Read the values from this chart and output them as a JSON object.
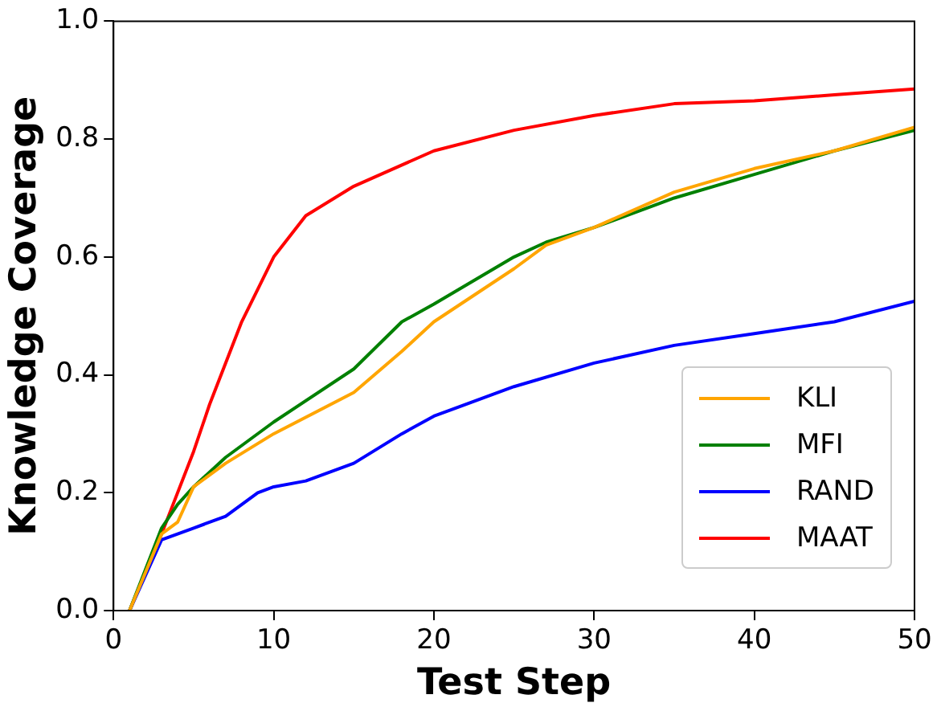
{
  "chart_data": {
    "type": "line",
    "xlabel": "Test Step",
    "ylabel": "Knowledge Coverage",
    "xlim": [
      0,
      50
    ],
    "xticks": [
      0,
      10,
      20,
      30,
      40,
      50
    ],
    "ylim": [
      0,
      1
    ],
    "yticks": [
      {
        "value": 0,
        "label": "0.0"
      },
      {
        "value": 0.2,
        "label": "0.2"
      },
      {
        "value": 0.4,
        "label": "0.4"
      },
      {
        "value": 0.6,
        "label": "0.6"
      },
      {
        "value": 0.8,
        "label": "0.8"
      },
      {
        "value": 1,
        "label": "1.0"
      }
    ],
    "grid": false,
    "legend": "bottom right",
    "marker": "none",
    "line_style": "solid",
    "series": [
      {
        "name": "KLI",
        "color": "#ffa500",
        "x": [
          1,
          3,
          4,
          5,
          7,
          10,
          15,
          18,
          20,
          25,
          27,
          30,
          35,
          40,
          45,
          50
        ],
        "values": [
          0,
          0.13,
          0.15,
          0.21,
          0.25,
          0.3,
          0.37,
          0.44,
          0.49,
          0.58,
          0.62,
          0.65,
          0.71,
          0.75,
          0.78,
          0.82
        ]
      },
      {
        "name": "MFI",
        "color": "#008000",
        "x": [
          1,
          3,
          4,
          5,
          7,
          10,
          15,
          18,
          20,
          25,
          27,
          30,
          35,
          40,
          45,
          50
        ],
        "values": [
          0,
          0.14,
          0.18,
          0.21,
          0.26,
          0.32,
          0.41,
          0.49,
          0.52,
          0.6,
          0.625,
          0.65,
          0.7,
          0.74,
          0.78,
          0.815
        ]
      },
      {
        "name": "RAND",
        "color": "#0000ff",
        "x": [
          1,
          3,
          5,
          7,
          9,
          10,
          12,
          15,
          18,
          20,
          25,
          30,
          35,
          40,
          45,
          50
        ],
        "values": [
          0,
          0.12,
          0.14,
          0.16,
          0.2,
          0.21,
          0.22,
          0.25,
          0.3,
          0.33,
          0.38,
          0.42,
          0.45,
          0.47,
          0.49,
          0.525
        ]
      },
      {
        "name": "MAAT",
        "color": "#ff0000",
        "x": [
          1,
          3,
          5,
          6,
          8,
          10,
          12,
          15,
          20,
          25,
          30,
          35,
          40,
          45,
          50
        ],
        "values": [
          0,
          0.13,
          0.27,
          0.35,
          0.49,
          0.6,
          0.67,
          0.72,
          0.78,
          0.815,
          0.84,
          0.86,
          0.865,
          0.875,
          0.885
        ]
      }
    ]
  }
}
